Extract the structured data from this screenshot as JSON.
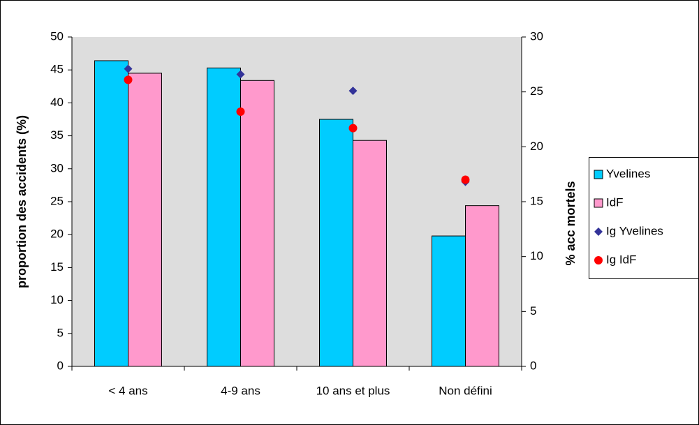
{
  "chart_data": {
    "type": "bar",
    "categories": [
      "< 4 ans",
      "4-9 ans",
      "10 ans et plus",
      "Non défini"
    ],
    "y_label": "proportion des accidents (%)",
    "y2_label": "% acc mortels",
    "ylim": [
      0,
      50
    ],
    "yticks": [
      0,
      5,
      10,
      15,
      20,
      25,
      30,
      35,
      40,
      45,
      50
    ],
    "y2lim": [
      0,
      30
    ],
    "y2ticks": [
      0,
      5,
      10,
      15,
      20,
      25,
      30
    ],
    "grid": false,
    "legend": "right",
    "series": [
      {
        "name": "Yvelines",
        "type": "bar",
        "color": "#00ccff",
        "values": [
          46.4,
          45.3,
          37.5,
          19.8
        ]
      },
      {
        "name": "IdF",
        "type": "bar",
        "color": "#ff99cc",
        "values": [
          44.5,
          43.4,
          34.3,
          24.4
        ]
      },
      {
        "name": "Ig Yvelines",
        "type": "scatter",
        "marker": "diamond",
        "axis": "y2",
        "color": "#333399",
        "values": [
          27.1,
          26.6,
          25.1,
          16.8
        ]
      },
      {
        "name": "Ig IdF",
        "type": "scatter",
        "marker": "circle",
        "axis": "y2",
        "color": "#ff0000",
        "values": [
          26.1,
          23.2,
          21.7,
          17.0
        ]
      }
    ]
  }
}
